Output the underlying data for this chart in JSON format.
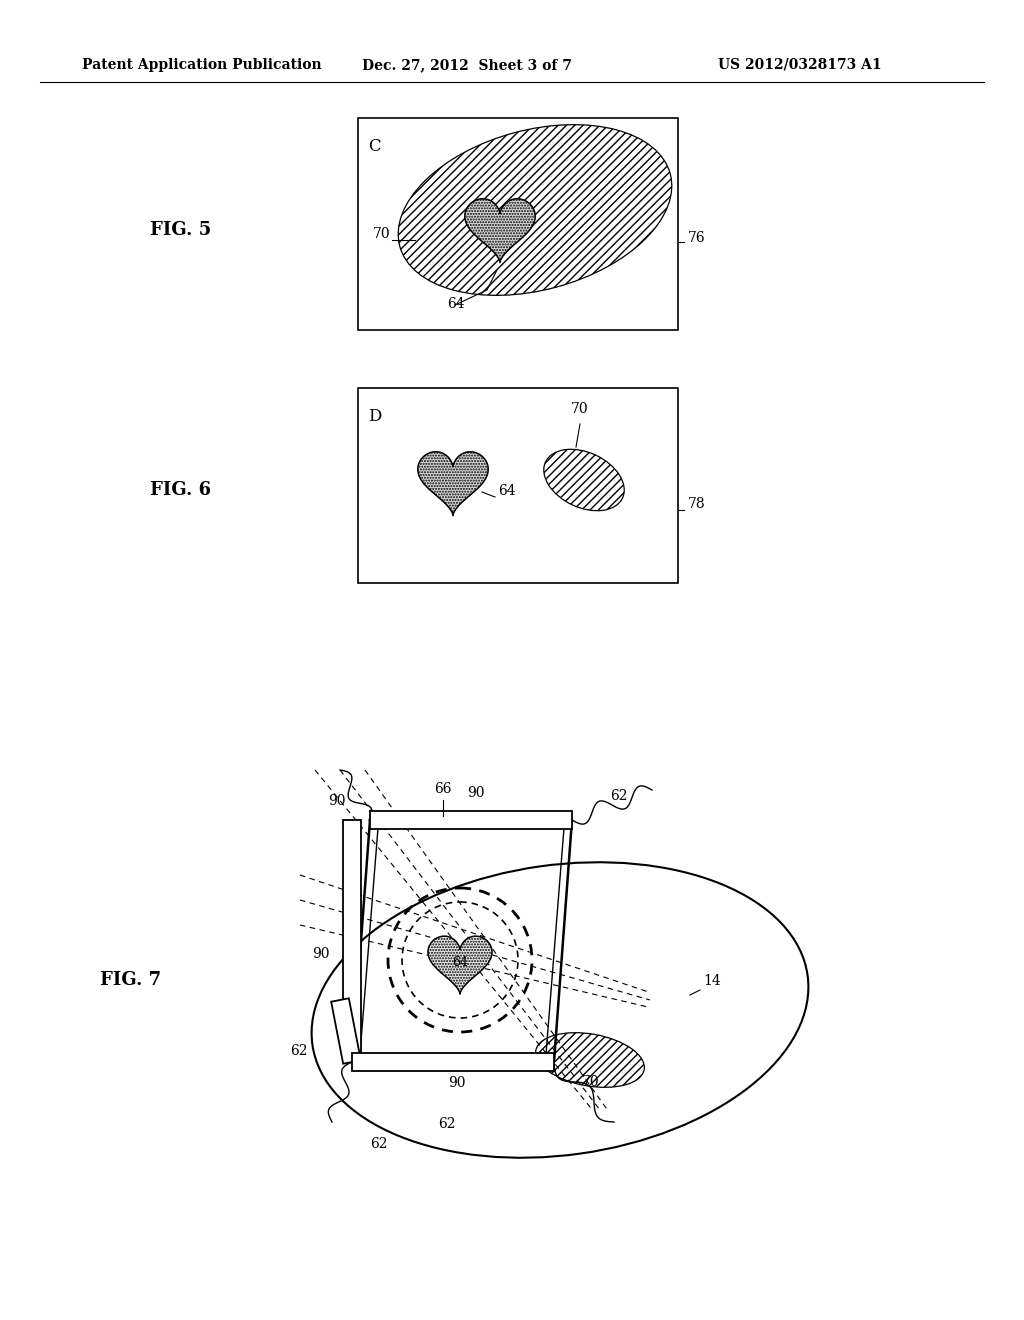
{
  "bg_color": "#ffffff",
  "header_text1": "Patent Application Publication",
  "header_text2": "Dec. 27, 2012  Sheet 3 of 7",
  "header_text3": "US 2012/0328173 A1",
  "fig5_label": "FIG. 5",
  "fig6_label": "FIG. 6",
  "fig7_label": "FIG. 7",
  "label_C": "C",
  "label_D": "D",
  "ref_70_fig5": "70",
  "ref_64_fig5": "64",
  "ref_76": "76",
  "ref_70_fig6": "70",
  "ref_64_fig6": "64",
  "ref_78": "78",
  "ref_66": "66",
  "ref_90": "90",
  "ref_62": "62",
  "ref_64_fig7": "64",
  "ref_14": "14",
  "ref_70_fig7": "70"
}
